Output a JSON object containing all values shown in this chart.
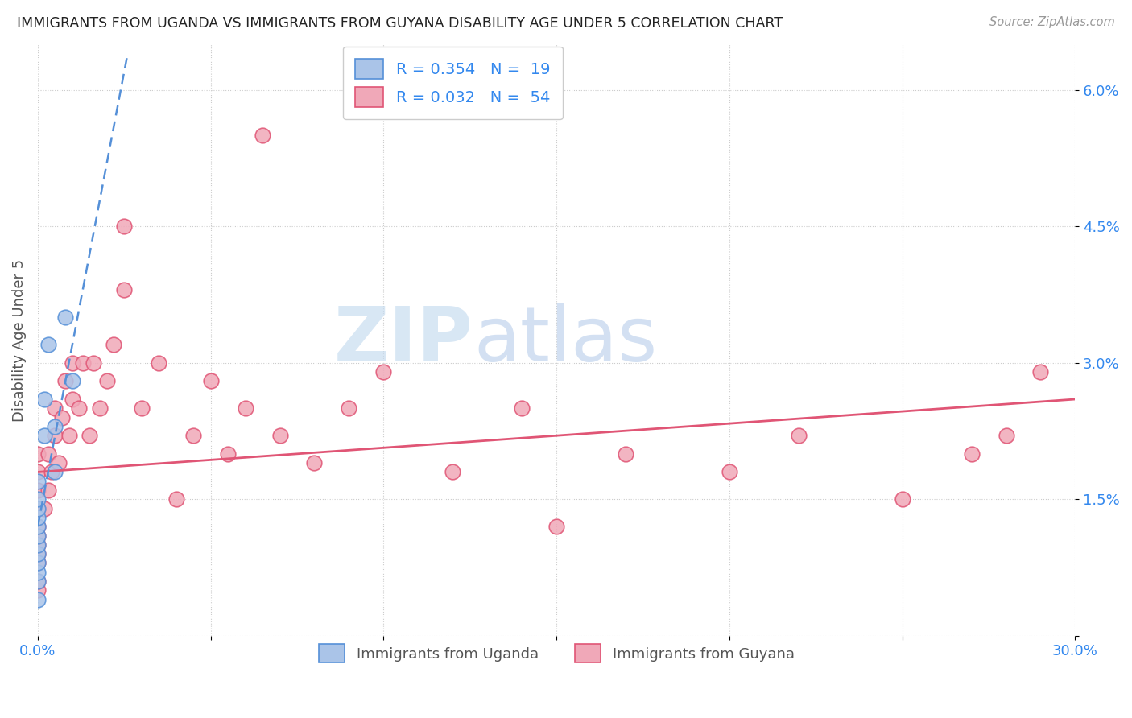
{
  "title": "IMMIGRANTS FROM UGANDA VS IMMIGRANTS FROM GUYANA DISABILITY AGE UNDER 5 CORRELATION CHART",
  "source": "Source: ZipAtlas.com",
  "ylabel": "Disability Age Under 5",
  "xlabel": "",
  "xlim": [
    0.0,
    0.3
  ],
  "ylim": [
    0.0,
    0.065
  ],
  "xticks": [
    0.0,
    0.05,
    0.1,
    0.15,
    0.2,
    0.25,
    0.3
  ],
  "yticks": [
    0.0,
    0.015,
    0.03,
    0.045,
    0.06
  ],
  "ytick_labels": [
    "",
    "1.5%",
    "3.0%",
    "4.5%",
    "6.0%"
  ],
  "xtick_labels": [
    "0.0%",
    "",
    "",
    "",
    "",
    "",
    "30.0%"
  ],
  "uganda_color": "#aac4e8",
  "guyana_color": "#f0a8b8",
  "uganda_line_color": "#5590d8",
  "guyana_line_color": "#e05575",
  "watermark_zip": "ZIP",
  "watermark_atlas": "atlas",
  "uganda_points_x": [
    0.0,
    0.0,
    0.0,
    0.0,
    0.0,
    0.0,
    0.0,
    0.0,
    0.0,
    0.0,
    0.0,
    0.0,
    0.002,
    0.002,
    0.003,
    0.005,
    0.005,
    0.008,
    0.01
  ],
  "uganda_points_y": [
    0.004,
    0.006,
    0.007,
    0.008,
    0.009,
    0.01,
    0.011,
    0.012,
    0.013,
    0.014,
    0.015,
    0.017,
    0.022,
    0.026,
    0.032,
    0.018,
    0.023,
    0.035,
    0.028
  ],
  "guyana_points_x": [
    0.0,
    0.0,
    0.0,
    0.0,
    0.0,
    0.0,
    0.0,
    0.0,
    0.0,
    0.0,
    0.0,
    0.002,
    0.003,
    0.003,
    0.004,
    0.005,
    0.005,
    0.006,
    0.007,
    0.008,
    0.009,
    0.01,
    0.01,
    0.012,
    0.013,
    0.015,
    0.016,
    0.018,
    0.02,
    0.022,
    0.025,
    0.025,
    0.03,
    0.035,
    0.04,
    0.045,
    0.05,
    0.055,
    0.06,
    0.065,
    0.07,
    0.08,
    0.09,
    0.1,
    0.12,
    0.14,
    0.15,
    0.17,
    0.2,
    0.22,
    0.25,
    0.27,
    0.28,
    0.29
  ],
  "guyana_points_y": [
    0.005,
    0.006,
    0.008,
    0.009,
    0.01,
    0.011,
    0.012,
    0.014,
    0.016,
    0.018,
    0.02,
    0.014,
    0.016,
    0.02,
    0.018,
    0.022,
    0.025,
    0.019,
    0.024,
    0.028,
    0.022,
    0.026,
    0.03,
    0.025,
    0.03,
    0.022,
    0.03,
    0.025,
    0.028,
    0.032,
    0.038,
    0.045,
    0.025,
    0.03,
    0.015,
    0.022,
    0.028,
    0.02,
    0.025,
    0.055,
    0.022,
    0.019,
    0.025,
    0.029,
    0.018,
    0.025,
    0.012,
    0.02,
    0.018,
    0.022,
    0.015,
    0.02,
    0.022,
    0.029
  ],
  "background_color": "#ffffff",
  "grid_color": "#cccccc",
  "uganda_trend_x0": 0.0,
  "uganda_trend_x1": 0.026,
  "uganda_trend_y0": 0.012,
  "uganda_trend_y1": 0.064,
  "guyana_trend_x0": 0.0,
  "guyana_trend_x1": 0.3,
  "guyana_trend_y0": 0.018,
  "guyana_trend_y1": 0.026
}
